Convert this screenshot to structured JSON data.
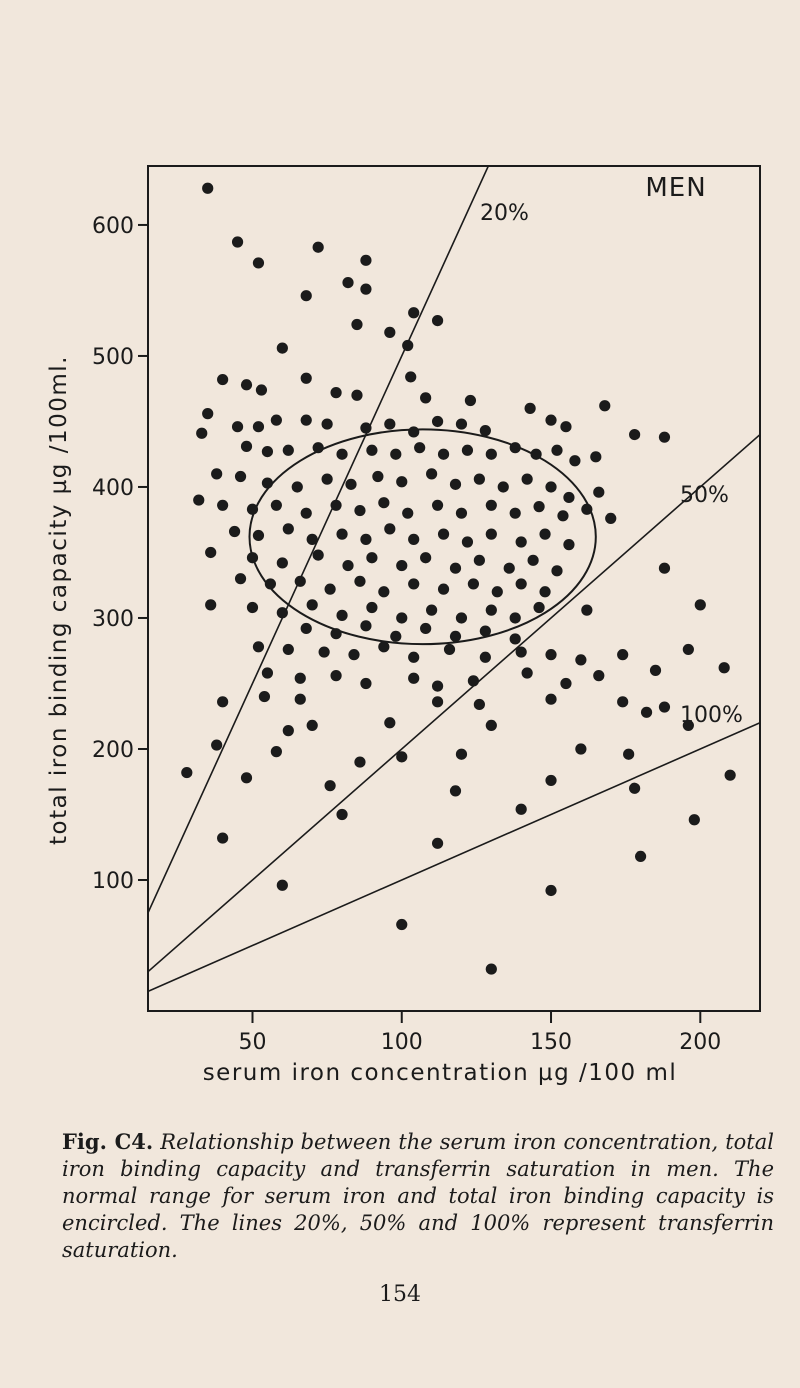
{
  "chart_data": {
    "type": "scatter",
    "title": "MEN",
    "xlabel": "serum iron concentration µg /100 ml",
    "ylabel": "total iron binding capacity µg /100ml.",
    "xlim": [
      15,
      220
    ],
    "ylim": [
      0,
      645
    ],
    "x_ticks": [
      50,
      100,
      150,
      200
    ],
    "x_tick_labels": [
      "50",
      "100",
      "150",
      "200"
    ],
    "y_ticks": [
      100,
      200,
      300,
      400,
      500,
      600
    ],
    "y_tick_labels": [
      "100",
      "200",
      "300",
      "400",
      "500",
      "600"
    ],
    "reference_lines": [
      {
        "label": "20%",
        "saturation": 0.2
      },
      {
        "label": "50%",
        "saturation": 0.5
      },
      {
        "label": "100%",
        "saturation": 1.0
      }
    ],
    "normal_range_ellipse": {
      "center": [
        107,
        362
      ],
      "radii": [
        58,
        82
      ]
    },
    "points": [
      [
        35,
        628
      ],
      [
        45,
        587
      ],
      [
        72,
        583
      ],
      [
        52,
        571
      ],
      [
        88,
        573
      ],
      [
        82,
        556
      ],
      [
        88,
        551
      ],
      [
        68,
        546
      ],
      [
        104,
        533
      ],
      [
        85,
        524
      ],
      [
        96,
        518
      ],
      [
        112,
        527
      ],
      [
        102,
        508
      ],
      [
        60,
        506
      ],
      [
        68,
        483
      ],
      [
        48,
        478
      ],
      [
        40,
        482
      ],
      [
        53,
        474
      ],
      [
        78,
        472
      ],
      [
        85,
        470
      ],
      [
        103,
        484
      ],
      [
        108,
        468
      ],
      [
        123,
        466
      ],
      [
        35,
        456
      ],
      [
        45,
        446
      ],
      [
        52,
        446
      ],
      [
        58,
        451
      ],
      [
        68,
        451
      ],
      [
        75,
        448
      ],
      [
        88,
        445
      ],
      [
        96,
        448
      ],
      [
        104,
        442
      ],
      [
        112,
        450
      ],
      [
        120,
        448
      ],
      [
        128,
        443
      ],
      [
        143,
        460
      ],
      [
        150,
        451
      ],
      [
        155,
        446
      ],
      [
        168,
        462
      ],
      [
        178,
        440
      ],
      [
        188,
        438
      ],
      [
        33,
        441
      ],
      [
        48,
        431
      ],
      [
        55,
        427
      ],
      [
        62,
        428
      ],
      [
        72,
        430
      ],
      [
        80,
        425
      ],
      [
        90,
        428
      ],
      [
        98,
        425
      ],
      [
        106,
        430
      ],
      [
        114,
        425
      ],
      [
        122,
        428
      ],
      [
        130,
        425
      ],
      [
        138,
        430
      ],
      [
        145,
        425
      ],
      [
        152,
        428
      ],
      [
        158,
        420
      ],
      [
        165,
        423
      ],
      [
        38,
        410
      ],
      [
        46,
        408
      ],
      [
        55,
        403
      ],
      [
        65,
        400
      ],
      [
        75,
        406
      ],
      [
        83,
        402
      ],
      [
        92,
        408
      ],
      [
        100,
        404
      ],
      [
        110,
        410
      ],
      [
        118,
        402
      ],
      [
        126,
        406
      ],
      [
        134,
        400
      ],
      [
        142,
        406
      ],
      [
        150,
        400
      ],
      [
        156,
        392
      ],
      [
        166,
        396
      ],
      [
        32,
        390
      ],
      [
        40,
        386
      ],
      [
        50,
        383
      ],
      [
        58,
        386
      ],
      [
        68,
        380
      ],
      [
        78,
        386
      ],
      [
        86,
        382
      ],
      [
        94,
        388
      ],
      [
        102,
        380
      ],
      [
        112,
        386
      ],
      [
        120,
        380
      ],
      [
        130,
        386
      ],
      [
        138,
        380
      ],
      [
        146,
        385
      ],
      [
        154,
        378
      ],
      [
        162,
        383
      ],
      [
        170,
        376
      ],
      [
        44,
        366
      ],
      [
        52,
        363
      ],
      [
        62,
        368
      ],
      [
        70,
        360
      ],
      [
        80,
        364
      ],
      [
        88,
        360
      ],
      [
        96,
        368
      ],
      [
        104,
        360
      ],
      [
        114,
        364
      ],
      [
        122,
        358
      ],
      [
        130,
        364
      ],
      [
        140,
        358
      ],
      [
        148,
        364
      ],
      [
        156,
        356
      ],
      [
        36,
        350
      ],
      [
        50,
        346
      ],
      [
        60,
        342
      ],
      [
        72,
        348
      ],
      [
        82,
        340
      ],
      [
        90,
        346
      ],
      [
        100,
        340
      ],
      [
        108,
        346
      ],
      [
        118,
        338
      ],
      [
        126,
        344
      ],
      [
        136,
        338
      ],
      [
        144,
        344
      ],
      [
        152,
        336
      ],
      [
        188,
        338
      ],
      [
        46,
        330
      ],
      [
        56,
        326
      ],
      [
        66,
        328
      ],
      [
        76,
        322
      ],
      [
        86,
        328
      ],
      [
        94,
        320
      ],
      [
        104,
        326
      ],
      [
        114,
        322
      ],
      [
        124,
        326
      ],
      [
        132,
        320
      ],
      [
        140,
        326
      ],
      [
        148,
        320
      ],
      [
        36,
        310
      ],
      [
        50,
        308
      ],
      [
        60,
        304
      ],
      [
        70,
        310
      ],
      [
        80,
        302
      ],
      [
        90,
        308
      ],
      [
        100,
        300
      ],
      [
        110,
        306
      ],
      [
        120,
        300
      ],
      [
        130,
        306
      ],
      [
        138,
        300
      ],
      [
        146,
        308
      ],
      [
        162,
        306
      ],
      [
        200,
        310
      ],
      [
        68,
        292
      ],
      [
        78,
        288
      ],
      [
        88,
        294
      ],
      [
        98,
        286
      ],
      [
        108,
        292
      ],
      [
        118,
        286
      ],
      [
        128,
        290
      ],
      [
        138,
        284
      ],
      [
        52,
        278
      ],
      [
        62,
        276
      ],
      [
        74,
        274
      ],
      [
        84,
        272
      ],
      [
        94,
        278
      ],
      [
        104,
        270
      ],
      [
        116,
        276
      ],
      [
        128,
        270
      ],
      [
        140,
        274
      ],
      [
        150,
        272
      ],
      [
        160,
        268
      ],
      [
        174,
        272
      ],
      [
        196,
        276
      ],
      [
        55,
        258
      ],
      [
        66,
        254
      ],
      [
        78,
        256
      ],
      [
        88,
        250
      ],
      [
        104,
        254
      ],
      [
        112,
        248
      ],
      [
        124,
        252
      ],
      [
        142,
        258
      ],
      [
        155,
        250
      ],
      [
        166,
        256
      ],
      [
        185,
        260
      ],
      [
        208,
        262
      ],
      [
        40,
        236
      ],
      [
        54,
        240
      ],
      [
        66,
        238
      ],
      [
        112,
        236
      ],
      [
        126,
        234
      ],
      [
        150,
        238
      ],
      [
        174,
        236
      ],
      [
        182,
        228
      ],
      [
        188,
        232
      ],
      [
        62,
        214
      ],
      [
        70,
        218
      ],
      [
        96,
        220
      ],
      [
        130,
        218
      ],
      [
        196,
        218
      ],
      [
        38,
        203
      ],
      [
        58,
        198
      ],
      [
        86,
        190
      ],
      [
        100,
        194
      ],
      [
        120,
        196
      ],
      [
        160,
        200
      ],
      [
        176,
        196
      ],
      [
        28,
        182
      ],
      [
        48,
        178
      ],
      [
        76,
        172
      ],
      [
        118,
        168
      ],
      [
        150,
        176
      ],
      [
        178,
        170
      ],
      [
        210,
        180
      ],
      [
        80,
        150
      ],
      [
        140,
        154
      ],
      [
        198,
        146
      ],
      [
        40,
        132
      ],
      [
        112,
        128
      ],
      [
        180,
        118
      ],
      [
        60,
        96
      ],
      [
        150,
        92
      ],
      [
        100,
        66
      ],
      [
        130,
        32
      ]
    ]
  },
  "labels": {
    "men": "MEN",
    "line_20": "20%",
    "line_50": "50%",
    "line_100": "100%",
    "xlabel": "serum iron concentration µg /100 ml",
    "ylabel": "total iron binding capacity µg /100ml."
  },
  "caption": {
    "fig": "Fig. C4.",
    "text": "Relationship between the serum iron concentration, total iron binding capacity and transferrin saturation in men. The normal range for serum iron and total iron binding capacity is encircled. The lines 20%, 50% and 100% represent transferrin saturation."
  },
  "page_number": "154",
  "colors": {
    "background": "#f1e7dc",
    "ink": "#1b1b1b"
  }
}
